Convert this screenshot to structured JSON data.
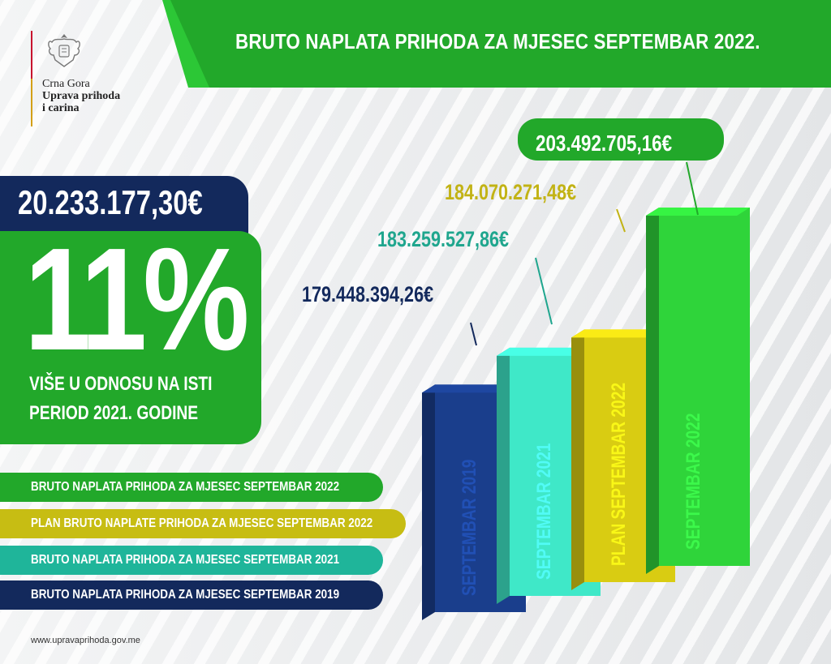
{
  "header": {
    "title": "BRUTO NAPLATA PRIHODA ZA MJESEC SEPTEMBAR 2022."
  },
  "logo": {
    "line1": "Crna Gora",
    "line2": "Uprava prihoda",
    "line3": "i carina"
  },
  "highlight": {
    "amount": "20.233.177,30€",
    "percent": "11%",
    "sub_line1": "VIŠE U ODNOSU NA ISTI",
    "sub_line2": "PERIOD 2021. GODINE"
  },
  "legend": [
    {
      "label": "BRUTO NAPLATA PRIHODA ZA MJESEC SEPTEMBAR 2022",
      "color": "#22a82a"
    },
    {
      "label": "PLAN BRUTO NAPLATE PRIHODA ZA MJESEC SEPTEMBAR 2022",
      "color": "#c7bd13"
    },
    {
      "label": "BRUTO NAPLATA PRIHODA ZA MJESEC SEPTEMBAR 2021",
      "color": "#1fb59a"
    },
    {
      "label": "BRUTO NAPLATA PRIHODA ZA MJESEC SEPTEMBAR 2019",
      "color": "#13295c"
    }
  ],
  "footer": {
    "url": "www.upravaprihoda.gov.me"
  },
  "chart_data": {
    "type": "bar",
    "title": "BRUTO NAPLATA PRIHODA ZA MJESEC SEPTEMBAR 2022.",
    "categories": [
      "SEPTEMBAR 2019",
      "SEPTEMBAR 2021",
      "PLAN SEPTEMBAR 2022",
      "SEPTEMBAR 2022"
    ],
    "values": [
      179448394.26,
      183259527.86,
      184070271.48,
      203492705.16
    ],
    "value_labels": [
      "179.448.394,26€",
      "183.259.527,86€",
      "184.070.271,48€",
      "203.492.705,16€"
    ],
    "colors": [
      "#1a3e8c",
      "#3fe8c8",
      "#d9cc12",
      "#2fd43a"
    ],
    "label_colors": [
      "#13295c",
      "#1fa68e",
      "#c2b315",
      "#ffffff"
    ],
    "grid": false,
    "legend_position": "left"
  }
}
